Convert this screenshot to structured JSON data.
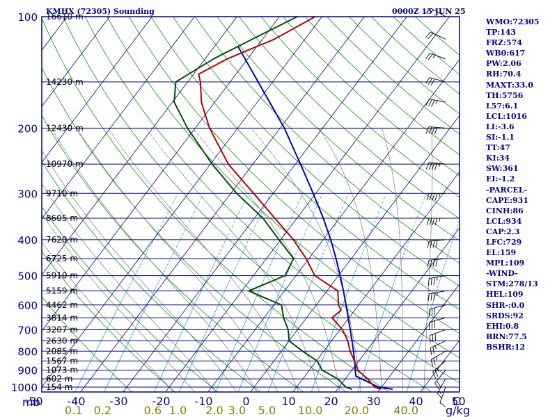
{
  "header": {
    "station": "KMHX (72305) Sounding",
    "time": "0000Z 15 JUN 25"
  },
  "axis": {
    "pressure_unit": "mb",
    "mixing_ratio_unit": "g/kg",
    "temperature_unit": "C"
  },
  "indices": [
    "WMO:72305",
    "TP:143",
    "FRZ:574",
    "WB0:617",
    "PW:2.06",
    "RH:70.4",
    "MAXT:33.0",
    "TH:5756",
    "L57:6.1",
    "LCL:1016",
    "LI:-3.6",
    "SI:-1.1",
    "TT:47",
    "KI:34",
    "SW:361",
    "EI:-1.2",
    "-PARCEL-",
    "CAPE:931",
    "CINH:86",
    "LCL:934",
    "CAP:2.3",
    "LFC:729",
    "EL:159",
    "MPL:109",
    "-WIND-",
    "STM:278/13",
    "HEL:109",
    "SHR-:0.0",
    "SRDS:92",
    "EHI:0.8",
    "BRN:77.5",
    "BSHR:12"
  ],
  "chart_data": {
    "type": "skew-t",
    "pressure_levels": [
      {
        "p": 100,
        "label": "100",
        "height": "16610 m"
      },
      {
        "p": 150,
        "label": "",
        "height": "14230 m"
      },
      {
        "p": 200,
        "label": "200",
        "height": "12430 m"
      },
      {
        "p": 250,
        "label": "",
        "height": "10970 m"
      },
      {
        "p": 300,
        "label": "300",
        "height": "9710 m"
      },
      {
        "p": 350,
        "label": "",
        "height": "8605 m"
      },
      {
        "p": 400,
        "label": "400",
        "height": "7620 m"
      },
      {
        "p": 450,
        "label": "",
        "height": "6725 m"
      },
      {
        "p": 500,
        "label": "500",
        "height": "5910 m"
      },
      {
        "p": 550,
        "label": "",
        "height": "5159 m"
      },
      {
        "p": 600,
        "label": "600",
        "height": "4462 m"
      },
      {
        "p": 650,
        "label": "",
        "height": "3814 m"
      },
      {
        "p": 700,
        "label": "700",
        "height": "3207 m"
      },
      {
        "p": 750,
        "label": "",
        "height": "2630 m"
      },
      {
        "p": 800,
        "label": "800",
        "height": "2085 m"
      },
      {
        "p": 850,
        "label": "",
        "height": "1567 m"
      },
      {
        "p": 900,
        "label": "900",
        "height": "1073 m"
      },
      {
        "p": 950,
        "label": "",
        "height": "602 m"
      },
      {
        "p": 1000,
        "label": "1000",
        "height": "154 m"
      }
    ],
    "temperature_ticks": [
      -50,
      -40,
      -30,
      -20,
      -10,
      0,
      10,
      20,
      30,
      40,
      50
    ],
    "mixing_ratio_ticks": [
      "0.1",
      "0.2",
      "0.6",
      "1.0",
      "2.0",
      "3.0",
      "5.0",
      "10.0",
      "20.0",
      "40.0"
    ],
    "xlim_c": [
      -50,
      50
    ],
    "pressure_range_mb": [
      100,
      1050
    ],
    "temperature_profile": [
      [
        1013,
        30.2
      ],
      [
        1000,
        28.4
      ],
      [
        950,
        25.2
      ],
      [
        900,
        21.4
      ],
      [
        850,
        19.0
      ],
      [
        800,
        16.2
      ],
      [
        750,
        13.8
      ],
      [
        700,
        10.6
      ],
      [
        650,
        6.0
      ],
      [
        620,
        6.8
      ],
      [
        600,
        5.2
      ],
      [
        550,
        2.6
      ],
      [
        500,
        -5.6
      ],
      [
        450,
        -10.6
      ],
      [
        400,
        -17.0
      ],
      [
        350,
        -25.2
      ],
      [
        300,
        -34.6
      ],
      [
        250,
        -45.8
      ],
      [
        200,
        -56.6
      ],
      [
        170,
        -63.2
      ],
      [
        150,
        -67.0
      ],
      [
        143,
        -68.8
      ],
      [
        130,
        -64.8
      ],
      [
        115,
        -57.2
      ],
      [
        100,
        -51.6
      ]
    ],
    "dewpoint_profile": [
      [
        1013,
        23.4
      ],
      [
        1000,
        21.6
      ],
      [
        950,
        18.2
      ],
      [
        900,
        13.0
      ],
      [
        850,
        10.2
      ],
      [
        800,
        5.0
      ],
      [
        750,
        0.0
      ],
      [
        700,
        -2.2
      ],
      [
        650,
        -5.4
      ],
      [
        600,
        -8.2
      ],
      [
        550,
        -18.4
      ],
      [
        500,
        -12.6
      ],
      [
        450,
        -13.6
      ],
      [
        400,
        -20.4
      ],
      [
        350,
        -28.0
      ],
      [
        300,
        -38.6
      ],
      [
        250,
        -49.6
      ],
      [
        200,
        -61.8
      ],
      [
        170,
        -69.6
      ],
      [
        150,
        -72.8
      ],
      [
        130,
        -68.0
      ],
      [
        115,
        -62.4
      ],
      [
        100,
        -55.8
      ]
    ],
    "parcel_profile": [
      [
        1013,
        33.0
      ],
      [
        1000,
        29.3
      ],
      [
        934,
        22.0
      ],
      [
        900,
        20.8
      ],
      [
        850,
        19.0
      ],
      [
        800,
        17.0
      ],
      [
        750,
        14.8
      ],
      [
        700,
        12.4
      ],
      [
        650,
        9.8
      ],
      [
        600,
        7.0
      ],
      [
        550,
        3.9
      ],
      [
        500,
        0.4
      ],
      [
        450,
        -3.6
      ],
      [
        400,
        -8.2
      ],
      [
        350,
        -13.8
      ],
      [
        300,
        -20.6
      ],
      [
        250,
        -28.8
      ],
      [
        200,
        -39.0
      ],
      [
        150,
        -53.4
      ],
      [
        120,
        -64.6
      ]
    ],
    "wind_barbs": [
      [
        1000,
        200,
        10
      ],
      [
        950,
        210,
        15
      ],
      [
        900,
        220,
        20
      ],
      [
        850,
        230,
        25
      ],
      [
        800,
        240,
        25
      ],
      [
        750,
        245,
        25
      ],
      [
        700,
        250,
        30
      ],
      [
        650,
        255,
        30
      ],
      [
        600,
        255,
        30
      ],
      [
        550,
        260,
        35
      ],
      [
        500,
        260,
        35
      ],
      [
        450,
        265,
        40
      ],
      [
        400,
        265,
        40
      ],
      [
        350,
        270,
        45
      ],
      [
        300,
        270,
        45
      ],
      [
        250,
        275,
        45
      ],
      [
        200,
        275,
        40
      ],
      [
        170,
        280,
        35
      ],
      [
        150,
        285,
        30
      ],
      [
        130,
        290,
        25
      ],
      [
        115,
        295,
        20
      ],
      [
        100,
        300,
        15
      ]
    ],
    "grid": true,
    "colors": {
      "isobar": "#00008b",
      "isotherm": "#00008b",
      "dry_adiabat": "#009900",
      "moist_adiabat": "#888888",
      "mixing_ratio": "#33aadd",
      "temperature": "#b30000",
      "dewpoint": "#005000",
      "parcel": "#0000b3",
      "wind": "#000000",
      "mixing_label": "#808000"
    }
  }
}
